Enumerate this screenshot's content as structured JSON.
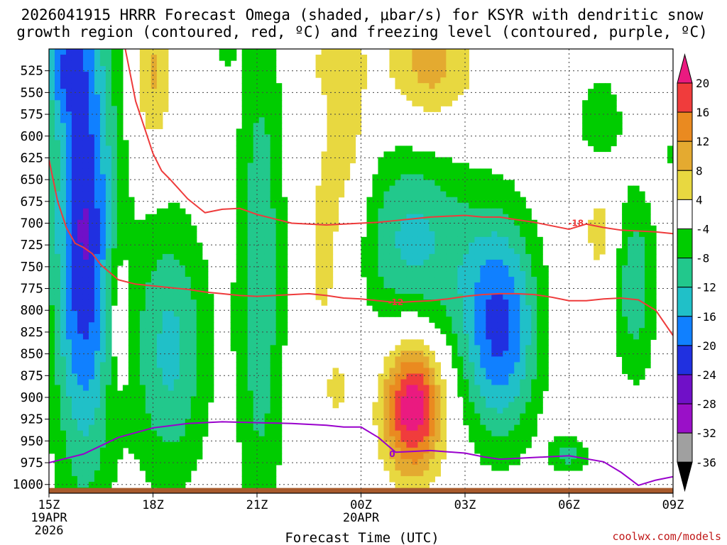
{
  "chart_data": {
    "type": "heatmap",
    "title_line1": "2026041915 HRRR Forecast Omega (shaded, μbar/s) for KSYR with dendritic snow",
    "title_line2": "growth region (contoured, red, ºC) and freezing level (contoured, purple, ºC)",
    "xlabel": "Forecast Time (UTC)",
    "credit": "coolwx.com/models",
    "x_range_hours": [
      0,
      18
    ],
    "x_ticks": [
      {
        "h": 0,
        "label": "15Z",
        "sub1": "19APR",
        "sub2": "2026"
      },
      {
        "h": 3,
        "label": "18Z",
        "sub1": "",
        "sub2": ""
      },
      {
        "h": 6,
        "label": "21Z",
        "sub1": "",
        "sub2": ""
      },
      {
        "h": 9,
        "label": "00Z",
        "sub1": "20APR",
        "sub2": ""
      },
      {
        "h": 12,
        "label": "03Z",
        "sub1": "",
        "sub2": ""
      },
      {
        "h": 15,
        "label": "06Z",
        "sub1": "",
        "sub2": ""
      },
      {
        "h": 18,
        "label": "09Z",
        "sub1": "",
        "sub2": ""
      }
    ],
    "y_range_hpa": [
      500,
      1010
    ],
    "y_ticks": [
      "525",
      "550",
      "575",
      "600",
      "625",
      "650",
      "675",
      "700",
      "725",
      "750",
      "775",
      "800",
      "825",
      "850",
      "875",
      "900",
      "925",
      "950",
      "975",
      "1000"
    ],
    "colorbar": {
      "labels": [
        "20",
        "16",
        "12",
        "8",
        "4",
        "-4",
        "-8",
        "-12",
        "-16",
        "-20",
        "-24",
        "-28",
        "-32",
        "-36"
      ],
      "bins": [
        {
          "lo": 20,
          "hi": 24,
          "color": "#ea1a80"
        },
        {
          "lo": 16,
          "hi": 20,
          "color": "#f03c3c"
        },
        {
          "lo": 12,
          "hi": 16,
          "color": "#ea8a20"
        },
        {
          "lo": 8,
          "hi": 12,
          "color": "#e4aa30"
        },
        {
          "lo": 4,
          "hi": 8,
          "color": "#e8d840"
        },
        {
          "lo": -4,
          "hi": 4,
          "color": "#ffffff"
        },
        {
          "lo": -8,
          "hi": -4,
          "color": "#00cc00"
        },
        {
          "lo": -12,
          "hi": -8,
          "color": "#22c88c"
        },
        {
          "lo": -16,
          "hi": -12,
          "color": "#20c0c8"
        },
        {
          "lo": -20,
          "hi": -16,
          "color": "#1080ff"
        },
        {
          "lo": -24,
          "hi": -20,
          "color": "#2030e0"
        },
        {
          "lo": -28,
          "hi": -24,
          "color": "#7010c8"
        },
        {
          "lo": -32,
          "hi": -28,
          "color": "#9a10c8"
        },
        {
          "lo": -36,
          "hi": -32,
          "color": "#a0a0a0"
        },
        {
          "lo": -40,
          "hi": -36,
          "color": "#000000"
        }
      ]
    },
    "omega_blobs": [
      {
        "name": "A",
        "h": 1.0,
        "p": 640,
        "w": 0.75,
        "d": 260,
        "peak": -13
      },
      {
        "name": "A2",
        "h": 1.0,
        "p": 740,
        "w": 0.55,
        "d": 160,
        "peak": -12
      },
      {
        "name": "A3",
        "h": 0.4,
        "p": 520,
        "w": 0.45,
        "d": 40,
        "peak": -10
      },
      {
        "name": "B",
        "h": 3.5,
        "p": 845,
        "w": 0.8,
        "d": 110,
        "peak": -13
      },
      {
        "name": "C",
        "h": 6.1,
        "p": 760,
        "w": 0.5,
        "d": 230,
        "peak": -11
      },
      {
        "name": "D",
        "h": 10.5,
        "p": 720,
        "w": 1.2,
        "d": 80,
        "peak": -13
      },
      {
        "name": "E",
        "h": 13.0,
        "p": 820,
        "w": 0.8,
        "d": 90,
        "peak": -21
      },
      {
        "name": "F",
        "h": 15.9,
        "p": 580,
        "w": 0.5,
        "d": 40,
        "peak": -7
      },
      {
        "name": "G",
        "h": 16.9,
        "p": 770,
        "w": 0.45,
        "d": 80,
        "peak": -11
      },
      {
        "name": "H",
        "h": 15.0,
        "p": 965,
        "w": 0.4,
        "d": 14,
        "peak": -10
      },
      {
        "name": "I",
        "h": 5.1,
        "p": 502,
        "w": 0.2,
        "d": 14,
        "peak": -6
      },
      {
        "name": "J",
        "h": 18.1,
        "p": 620,
        "w": 0.2,
        "d": 30,
        "peak": -6
      },
      {
        "name": "K",
        "h": 10.5,
        "p": 910,
        "w": 0.6,
        "d": 55,
        "peak": 24
      },
      {
        "name": "L",
        "h": 11.0,
        "p": 520,
        "w": 0.9,
        "d": 50,
        "peak": 10
      },
      {
        "name": "M",
        "h": 8.6,
        "p": 590,
        "w": 0.45,
        "d": 130,
        "peak": 7
      },
      {
        "name": "N",
        "h": 3.0,
        "p": 530,
        "w": 0.4,
        "d": 60,
        "peak": 9
      },
      {
        "name": "O",
        "h": 2.0,
        "p": 810,
        "w": 0.25,
        "d": 60,
        "peak": 7
      },
      {
        "name": "P",
        "h": 15.9,
        "p": 710,
        "w": 0.35,
        "d": 45,
        "peak": 6
      },
      {
        "name": "Q",
        "h": 7.9,
        "p": 730,
        "w": 0.3,
        "d": 80,
        "peak": 6
      },
      {
        "name": "R",
        "h": 8.3,
        "p": 890,
        "w": 0.2,
        "d": 20,
        "peak": 6
      },
      {
        "name": "S",
        "h": 7.9,
        "p": 520,
        "w": 0.15,
        "d": 20,
        "peak": 5
      }
    ],
    "contours_red": [
      {
        "label": "-12",
        "label_at": {
          "h": 10.0,
          "p": 791
        },
        "x": [
          0,
          0.25,
          0.5,
          0.75,
          1.0,
          1.25,
          1.5,
          2.0,
          2.5,
          3.0,
          3.5,
          4.0,
          4.5,
          5.0,
          5.5,
          6.0,
          6.5,
          7.0,
          7.5,
          8.0,
          8.5,
          9.0,
          9.5,
          10.0,
          10.5,
          11.0,
          11.5,
          12.0,
          12.5,
          13.0,
          13.5,
          14.0,
          14.5,
          15.0,
          15.5,
          16.0,
          16.5,
          17.0,
          17.5,
          18.0
        ],
        "p": [
          627,
          675,
          705,
          723,
          728,
          735,
          748,
          765,
          770,
          772,
          774,
          776,
          779,
          781,
          783,
          784,
          783,
          782,
          781,
          783,
          786,
          787,
          789,
          791,
          790,
          789,
          787,
          784,
          782,
          781,
          781,
          782,
          785,
          789,
          789,
          787,
          786,
          788,
          800,
          829
        ]
      },
      {
        "label": "-18",
        "label_at": {
          "h": 15.2,
          "p": 700
        },
        "x": [
          2.2,
          2.3,
          2.4,
          2.5,
          2.75,
          3.0,
          3.25,
          3.5,
          4.0,
          4.5,
          5.0,
          5.5,
          6.0,
          7.0,
          8.0,
          9.0,
          9.5,
          10.0,
          10.5,
          11.0,
          11.5,
          12.0,
          12.5,
          13.0,
          13.5,
          14.0,
          14.5,
          15.0,
          15.5,
          16.0,
          16.5,
          17.0,
          17.5,
          18.0
        ],
        "p": [
          500,
          520,
          540,
          560,
          590,
          620,
          640,
          650,
          672,
          688,
          684,
          683,
          690,
          700,
          702,
          700,
          699,
          697,
          695,
          693,
          692,
          691,
          693,
          693,
          696,
          699,
          703,
          707,
          701,
          705,
          708,
          709,
          710,
          712
        ]
      }
    ],
    "contour_purple": {
      "label": "0",
      "label_at": {
        "h": 9.9,
        "p": 965
      },
      "x": [
        0,
        1.0,
        2.0,
        3.0,
        4.0,
        5.0,
        6.0,
        7.0,
        8.0,
        8.5,
        9.0,
        9.5,
        10.0,
        10.5,
        11.0,
        12.0,
        12.5,
        13.0,
        14.0,
        15.0,
        16.0,
        16.5,
        17.0,
        17.5,
        18.0
      ],
      "p": [
        975,
        965,
        946,
        935,
        930,
        928,
        929,
        930,
        932,
        934,
        934,
        946,
        963,
        962,
        961,
        964,
        968,
        971,
        969,
        967,
        974,
        986,
        1001,
        995,
        991
      ]
    },
    "terrain": {
      "x": [
        0,
        18
      ],
      "p": [
        1004,
        1004
      ],
      "color": "#a85a2c"
    }
  }
}
